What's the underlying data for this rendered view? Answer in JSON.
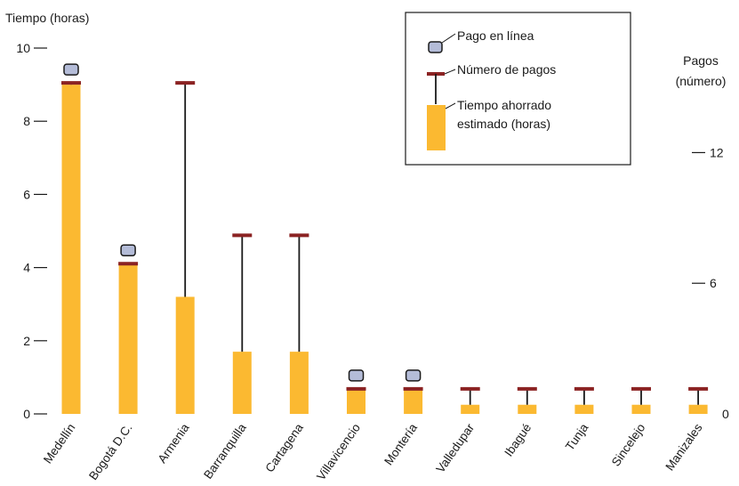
{
  "chart_data": {
    "type": "bar",
    "left_axis": {
      "title": "Tiempo (horas)",
      "ticks": [
        0,
        2,
        4,
        6,
        8,
        10
      ],
      "ylim": [
        0,
        10
      ]
    },
    "right_axis": {
      "title_line1": "Pagos",
      "title_line2": "(número)",
      "ticks": [
        0,
        6,
        12
      ],
      "ylim": [
        0,
        16.8
      ]
    },
    "categories": [
      "Medellín",
      "Bogotá D.C.",
      "Armenia",
      "Barranquilla",
      "Cartagena",
      "Villavicencio",
      "Montería",
      "Valledupar",
      "Ibagué",
      "Tunja",
      "Sincelejo",
      "Manizales"
    ],
    "series": [
      {
        "name": "Tiempo ahorrado estimado (horas)",
        "values": [
          9.0,
          4.1,
          3.2,
          1.7,
          1.7,
          0.65,
          0.65,
          0.25,
          0.25,
          0.25,
          0.25,
          0.25
        ]
      },
      {
        "name": "Número de pagos",
        "values": [
          15.2,
          6.9,
          15.2,
          8.2,
          8.2,
          1.15,
          1.15,
          1.15,
          1.15,
          1.15,
          1.15,
          1.15
        ]
      },
      {
        "name": "Pago en línea",
        "values": [
          true,
          true,
          false,
          false,
          false,
          true,
          true,
          false,
          false,
          false,
          false,
          false
        ]
      }
    ],
    "legend": {
      "position": "top-right",
      "items": [
        "Pago en línea",
        "Número de pagos",
        "Tiempo ahorrado estimado (horas)"
      ],
      "tiempo_line1": "Tiempo ahorrado",
      "tiempo_line2": "estimado (horas)"
    },
    "colors": {
      "bar": "#FBB931",
      "cap": "#8B2323",
      "stem": "#1a1a1a",
      "marker_fill": "#B4BCD8",
      "marker_stroke": "#1a1a1a"
    },
    "grid": false
  }
}
